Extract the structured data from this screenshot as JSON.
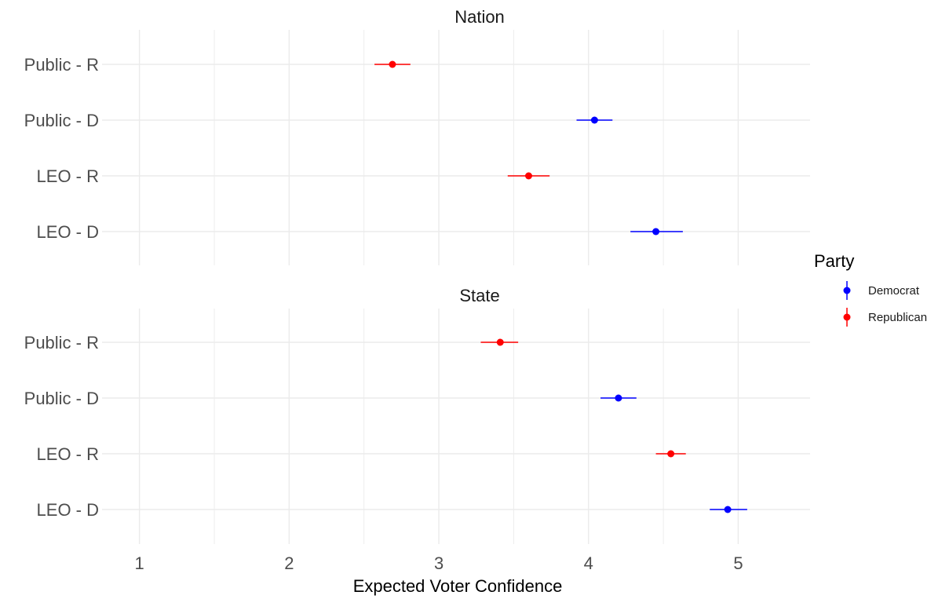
{
  "chart_data": {
    "type": "scatter",
    "subtype": "point-range",
    "xlabel": "Expected Voter Confidence",
    "xlim": [
      0.75,
      5.48
    ],
    "x_ticks": [
      1,
      2,
      3,
      4,
      5
    ],
    "grid": true,
    "legend": {
      "title": "Party",
      "placement": "right",
      "entries": [
        {
          "name": "Democrat",
          "color": "#0000ff"
        },
        {
          "name": "Republican",
          "color": "#ff0000"
        }
      ]
    },
    "categories": [
      "Public - R",
      "Public - D",
      "LEO - R",
      "LEO - D"
    ],
    "facets": [
      {
        "title": "Nation",
        "points": [
          {
            "category": "Public - R",
            "party": "Republican",
            "value": 2.69,
            "low": 2.57,
            "high": 2.81
          },
          {
            "category": "Public - D",
            "party": "Democrat",
            "value": 4.04,
            "low": 3.92,
            "high": 4.16
          },
          {
            "category": "LEO - R",
            "party": "Republican",
            "value": 3.6,
            "low": 3.46,
            "high": 3.74
          },
          {
            "category": "LEO - D",
            "party": "Democrat",
            "value": 4.45,
            "low": 4.28,
            "high": 4.63
          }
        ]
      },
      {
        "title": "State",
        "points": [
          {
            "category": "Public - R",
            "party": "Republican",
            "value": 3.41,
            "low": 3.28,
            "high": 3.53
          },
          {
            "category": "Public - D",
            "party": "Democrat",
            "value": 4.2,
            "low": 4.08,
            "high": 4.32
          },
          {
            "category": "LEO - R",
            "party": "Republican",
            "value": 4.55,
            "low": 4.45,
            "high": 4.65
          },
          {
            "category": "LEO - D",
            "party": "Democrat",
            "value": 4.93,
            "low": 4.81,
            "high": 5.06
          }
        ]
      }
    ]
  }
}
